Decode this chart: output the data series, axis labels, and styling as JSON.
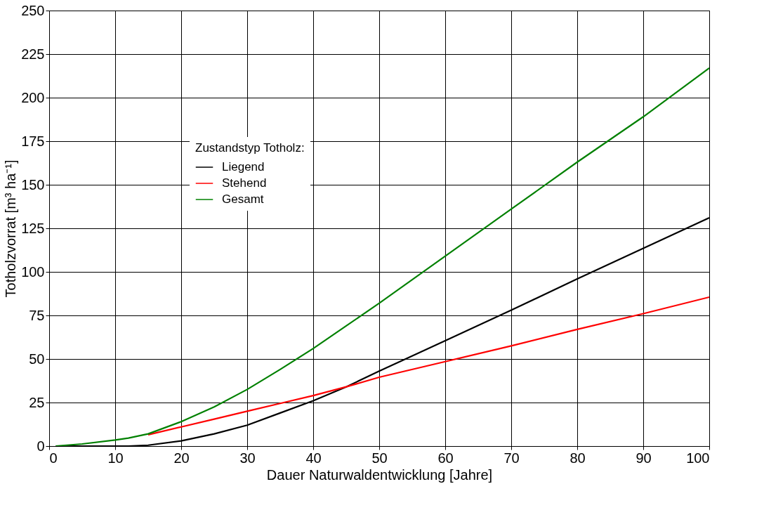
{
  "chart_data": {
    "type": "line",
    "xlabel": "Dauer Naturwaldentwicklung [Jahre]",
    "ylabel": "Totholzvorrat [m³ ha⁻¹]",
    "legend_title": "Zustandstyp Totholz:",
    "x": [
      1,
      5,
      10,
      12,
      15,
      20,
      25,
      30,
      35,
      40,
      45,
      50,
      60,
      70,
      80,
      90,
      100
    ],
    "series": [
      {
        "name": "Liegend",
        "color": "#000000",
        "values": [
          0,
          0,
          0,
          0,
          0.5,
          3,
          7,
          12,
          19,
          26,
          34,
          43,
          60.5,
          78,
          96,
          113.5,
          131
        ]
      },
      {
        "name": "Stehend",
        "color": "#ff0000",
        "values": [
          null,
          null,
          null,
          null,
          6.5,
          11,
          15.5,
          20,
          24.5,
          29,
          34,
          39.5,
          48.5,
          57.5,
          67,
          76,
          85.5
        ]
      },
      {
        "name": "Gesamt",
        "color": "#008000",
        "values": [
          0,
          1.2,
          3.5,
          4.6,
          7,
          14,
          22.5,
          32.5,
          44,
          56,
          69,
          82,
          109,
          136,
          163,
          189,
          217
        ]
      }
    ],
    "xlim": [
      0,
      100
    ],
    "xticks": [
      0,
      10,
      20,
      30,
      40,
      50,
      60,
      70,
      80,
      90,
      100
    ],
    "ylim": [
      0,
      250
    ],
    "yticks": [
      0,
      25,
      50,
      75,
      100,
      125,
      150,
      175,
      200,
      225,
      250
    ],
    "grid": true,
    "legend": "left",
    "marker": "none",
    "line_style": "solid"
  }
}
